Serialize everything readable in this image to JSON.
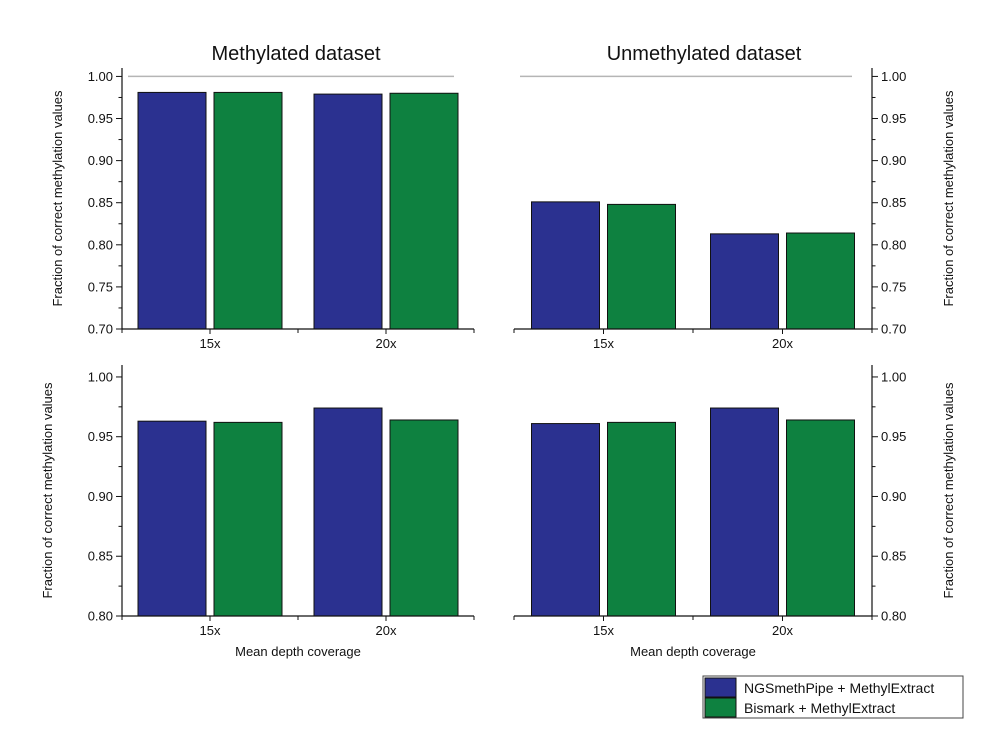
{
  "chart_data": {
    "type": "bar",
    "titles": [
      "Methylated dataset",
      "Unmethylated dataset"
    ],
    "ylabel": "Fraction of correct methylation values",
    "xlabel": "Mean depth coverage",
    "series_names": [
      "NGSmethPipe + MethylExtract",
      "Bismark + MethylExtract"
    ],
    "colors": {
      "NGSmethPipe + MethylExtract": "#2b3190",
      "Bismark + MethylExtract": "#0e8140"
    },
    "panels": [
      {
        "row": 0,
        "col": 0,
        "categories": [
          "15x",
          "20x"
        ],
        "ylim": [
          0.7,
          1.01
        ],
        "yticks": [
          "0.70",
          "0.75",
          "0.80",
          "0.85",
          "0.90",
          "0.95",
          "1.00"
        ],
        "reference_line": 1.0,
        "series": [
          {
            "name": "NGSmethPipe + MethylExtract",
            "values": [
              0.981,
              0.979
            ]
          },
          {
            "name": "Bismark + MethylExtract",
            "values": [
              0.981,
              0.98
            ]
          }
        ]
      },
      {
        "row": 0,
        "col": 1,
        "categories": [
          "15x",
          "20x"
        ],
        "ylim": [
          0.7,
          1.01
        ],
        "yticks": [
          "0.70",
          "0.75",
          "0.80",
          "0.85",
          "0.90",
          "0.95",
          "1.00"
        ],
        "reference_line": 1.0,
        "series": [
          {
            "name": "NGSmethPipe + MethylExtract",
            "values": [
              0.851,
              0.813
            ]
          },
          {
            "name": "Bismark + MethylExtract",
            "values": [
              0.848,
              0.814
            ]
          }
        ]
      },
      {
        "row": 1,
        "col": 0,
        "categories": [
          "15x",
          "20x"
        ],
        "ylim": [
          0.8,
          1.01
        ],
        "yticks": [
          "0.80",
          "0.85",
          "0.90",
          "0.95",
          "1.00"
        ],
        "series": [
          {
            "name": "NGSmethPipe + MethylExtract",
            "values": [
              0.963,
              0.974
            ]
          },
          {
            "name": "Bismark + MethylExtract",
            "values": [
              0.962,
              0.964
            ]
          }
        ]
      },
      {
        "row": 1,
        "col": 1,
        "categories": [
          "15x",
          "20x"
        ],
        "ylim": [
          0.8,
          1.01
        ],
        "yticks": [
          "0.80",
          "0.85",
          "0.90",
          "0.95",
          "1.00"
        ],
        "series": [
          {
            "name": "NGSmethPipe + MethylExtract",
            "values": [
              0.961,
              0.974
            ]
          },
          {
            "name": "Bismark + MethylExtract",
            "values": [
              0.962,
              0.964
            ]
          }
        ]
      }
    ],
    "legend_position": "bottom-right"
  }
}
